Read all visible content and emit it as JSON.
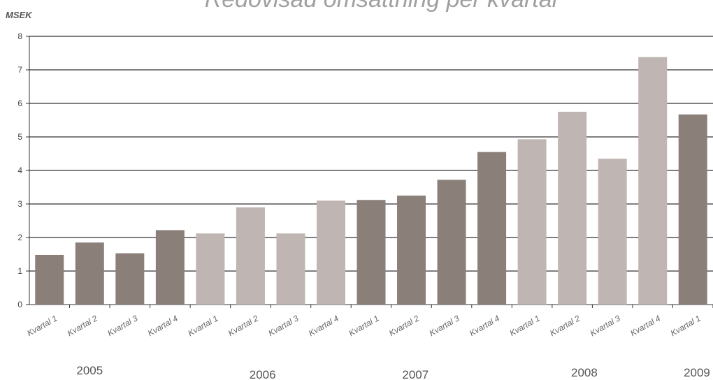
{
  "chart_data": {
    "type": "bar",
    "title": "Redovisad omsättning per kvartal",
    "ylabel": "MSEK",
    "xlabel": "",
    "ylim": [
      0,
      8
    ],
    "yticks": [
      0,
      1,
      2,
      3,
      4,
      5,
      6,
      7,
      8
    ],
    "grid": true,
    "categories": [
      "Kvartal 1",
      "Kvartal 2",
      "Kvartal 3",
      "Kvartal 4",
      "Kvartal 1",
      "Kvartal 2",
      "Kvartal 3",
      "Kvartal 4",
      "Kvartal 1",
      "Kvartal 2",
      "Kvartal 3",
      "Kvartal 4",
      "Kvartal 1",
      "Kvartal 2",
      "Kvartal 3",
      "Kvartal 4",
      "Kvartal 1"
    ],
    "values": [
      1.48,
      1.85,
      1.53,
      2.22,
      2.12,
      2.9,
      2.12,
      3.1,
      3.12,
      3.25,
      3.72,
      4.55,
      4.93,
      5.75,
      4.35,
      7.38,
      5.67
    ],
    "years": [
      {
        "label": "2005",
        "value": "2005"
      },
      {
        "label": "2006",
        "value": "2006"
      },
      {
        "label": "2007",
        "value": "2007"
      },
      {
        "label": "2008",
        "value": "2008"
      },
      {
        "label": "2009",
        "value": "2009"
      }
    ],
    "bar_colors": [
      "#8b7f7a",
      "#8b7f7a",
      "#8b7f7a",
      "#8b7f7a",
      "#bfb5b2",
      "#bfb5b2",
      "#bfb5b2",
      "#bfb5b2",
      "#8b7f7a",
      "#8b7f7a",
      "#8b7f7a",
      "#8b7f7a",
      "#bfb5b2",
      "#bfb5b2",
      "#bfb5b2",
      "#bfb5b2",
      "#8b7f7a"
    ]
  }
}
